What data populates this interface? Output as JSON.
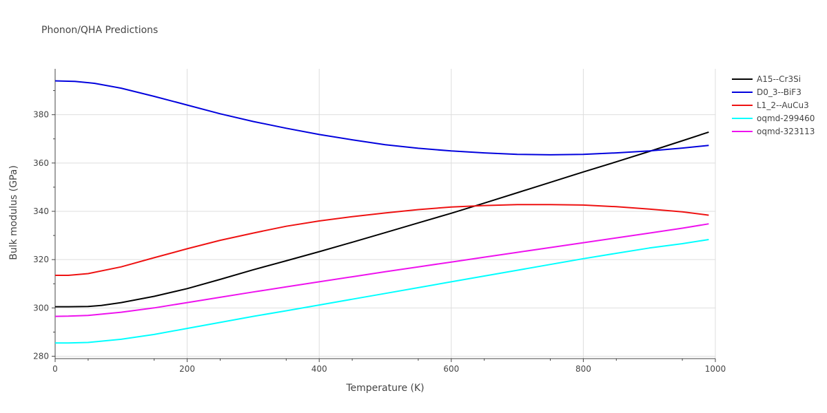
{
  "chart_data": {
    "type": "line",
    "title": "Phonon/QHA Predictions",
    "xlabel": "Temperature (K)",
    "ylabel": "Bulk modulus (GPa)",
    "xlim": [
      0,
      1000
    ],
    "ylim": [
      279,
      399
    ],
    "xticks": [
      0,
      200,
      400,
      600,
      800,
      1000
    ],
    "yticks": [
      280,
      300,
      320,
      340,
      360,
      380
    ],
    "grid": true,
    "legend_position": "top-right",
    "series": [
      {
        "name": "A15--Cr3Si",
        "color": "#000000",
        "x": [
          0,
          20,
          50,
          70,
          100,
          150,
          200,
          250,
          300,
          350,
          400,
          450,
          500,
          550,
          600,
          650,
          700,
          750,
          800,
          850,
          900,
          950,
          990
        ],
        "y": [
          300.5,
          300.5,
          300.6,
          301.0,
          302.2,
          304.8,
          308.0,
          311.8,
          315.8,
          319.5,
          323.3,
          327.2,
          331.2,
          335.2,
          339.2,
          343.4,
          347.7,
          352.0,
          356.3,
          360.5,
          364.8,
          369.2,
          372.8
        ]
      },
      {
        "name": "D0_3--BiF3",
        "color": "#0000dd",
        "x": [
          0,
          30,
          60,
          100,
          150,
          200,
          250,
          300,
          350,
          400,
          450,
          500,
          550,
          600,
          650,
          700,
          750,
          800,
          850,
          900,
          950,
          990
        ],
        "y": [
          394.0,
          393.8,
          393.0,
          391.0,
          387.6,
          384.0,
          380.4,
          377.2,
          374.4,
          371.8,
          369.6,
          367.6,
          366.1,
          365.0,
          364.2,
          363.6,
          363.4,
          363.6,
          364.2,
          365.0,
          366.2,
          367.3
        ]
      },
      {
        "name": "L1_2--AuCu3",
        "color": "#ee1111",
        "x": [
          0,
          20,
          50,
          100,
          150,
          200,
          250,
          300,
          350,
          400,
          450,
          500,
          550,
          600,
          650,
          700,
          750,
          800,
          850,
          900,
          950,
          990
        ],
        "y": [
          313.5,
          313.5,
          314.2,
          317.0,
          320.8,
          324.5,
          328.0,
          331.0,
          333.8,
          336.0,
          337.8,
          339.3,
          340.7,
          341.8,
          342.4,
          342.8,
          342.8,
          342.6,
          341.9,
          340.9,
          339.8,
          338.4
        ]
      },
      {
        "name": "oqmd-299460",
        "color": "#00ffff",
        "x": [
          0,
          20,
          50,
          100,
          150,
          200,
          250,
          300,
          350,
          400,
          450,
          500,
          550,
          600,
          650,
          700,
          750,
          800,
          850,
          900,
          950,
          990
        ],
        "y": [
          285.5,
          285.5,
          285.7,
          287.0,
          289.0,
          291.5,
          294.0,
          296.5,
          298.8,
          301.2,
          303.6,
          306.0,
          308.4,
          310.8,
          313.2,
          315.6,
          318.0,
          320.4,
          322.6,
          324.8,
          326.6,
          328.3
        ]
      },
      {
        "name": "oqmd-323113",
        "color": "#ee11ee",
        "x": [
          0,
          20,
          50,
          100,
          150,
          200,
          250,
          300,
          350,
          400,
          450,
          500,
          550,
          600,
          650,
          700,
          750,
          800,
          850,
          900,
          950,
          990
        ],
        "y": [
          296.5,
          296.6,
          296.9,
          298.2,
          300.0,
          302.2,
          304.4,
          306.6,
          308.7,
          310.8,
          312.9,
          315.0,
          317.0,
          319.0,
          321.0,
          323.0,
          325.0,
          327.0,
          329.0,
          331.0,
          333.0,
          334.8
        ]
      }
    ]
  }
}
